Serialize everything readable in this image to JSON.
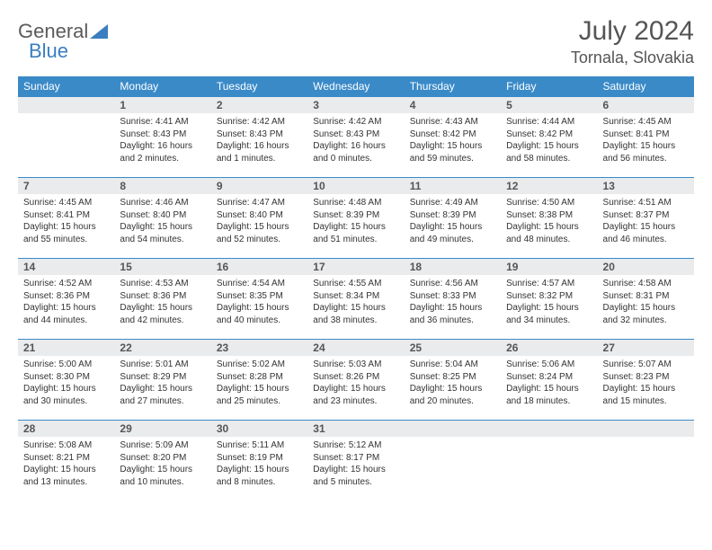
{
  "brand": {
    "word1": "General",
    "word2": "Blue",
    "word1_color": "#5a5a5a",
    "word2_color": "#3a7ebf"
  },
  "title": "July 2024",
  "location": "Tornala, Slovakia",
  "colors": {
    "header_bg": "#3a8ac8",
    "header_fg": "#ffffff",
    "daynum_bg": "#e9ebec",
    "daynum_fg": "#555555",
    "body_fg": "#333333",
    "rule": "#3a8ac8",
    "page_bg": "#ffffff"
  },
  "typography": {
    "month_title_fontsize": 30,
    "location_fontsize": 18,
    "weekday_fontsize": 12,
    "daynum_fontsize": 12,
    "cell_fontsize": 10
  },
  "weekdays": [
    "Sunday",
    "Monday",
    "Tuesday",
    "Wednesday",
    "Thursday",
    "Friday",
    "Saturday"
  ],
  "line_labels": {
    "sunrise": "Sunrise: ",
    "sunset": "Sunset: ",
    "daylight": "Daylight: "
  },
  "weeks": [
    [
      null,
      {
        "n": "1",
        "sr": "4:41 AM",
        "ss": "8:43 PM",
        "dl": "16 hours and 2 minutes."
      },
      {
        "n": "2",
        "sr": "4:42 AM",
        "ss": "8:43 PM",
        "dl": "16 hours and 1 minutes."
      },
      {
        "n": "3",
        "sr": "4:42 AM",
        "ss": "8:43 PM",
        "dl": "16 hours and 0 minutes."
      },
      {
        "n": "4",
        "sr": "4:43 AM",
        "ss": "8:42 PM",
        "dl": "15 hours and 59 minutes."
      },
      {
        "n": "5",
        "sr": "4:44 AM",
        "ss": "8:42 PM",
        "dl": "15 hours and 58 minutes."
      },
      {
        "n": "6",
        "sr": "4:45 AM",
        "ss": "8:41 PM",
        "dl": "15 hours and 56 minutes."
      }
    ],
    [
      {
        "n": "7",
        "sr": "4:45 AM",
        "ss": "8:41 PM",
        "dl": "15 hours and 55 minutes."
      },
      {
        "n": "8",
        "sr": "4:46 AM",
        "ss": "8:40 PM",
        "dl": "15 hours and 54 minutes."
      },
      {
        "n": "9",
        "sr": "4:47 AM",
        "ss": "8:40 PM",
        "dl": "15 hours and 52 minutes."
      },
      {
        "n": "10",
        "sr": "4:48 AM",
        "ss": "8:39 PM",
        "dl": "15 hours and 51 minutes."
      },
      {
        "n": "11",
        "sr": "4:49 AM",
        "ss": "8:39 PM",
        "dl": "15 hours and 49 minutes."
      },
      {
        "n": "12",
        "sr": "4:50 AM",
        "ss": "8:38 PM",
        "dl": "15 hours and 48 minutes."
      },
      {
        "n": "13",
        "sr": "4:51 AM",
        "ss": "8:37 PM",
        "dl": "15 hours and 46 minutes."
      }
    ],
    [
      {
        "n": "14",
        "sr": "4:52 AM",
        "ss": "8:36 PM",
        "dl": "15 hours and 44 minutes."
      },
      {
        "n": "15",
        "sr": "4:53 AM",
        "ss": "8:36 PM",
        "dl": "15 hours and 42 minutes."
      },
      {
        "n": "16",
        "sr": "4:54 AM",
        "ss": "8:35 PM",
        "dl": "15 hours and 40 minutes."
      },
      {
        "n": "17",
        "sr": "4:55 AM",
        "ss": "8:34 PM",
        "dl": "15 hours and 38 minutes."
      },
      {
        "n": "18",
        "sr": "4:56 AM",
        "ss": "8:33 PM",
        "dl": "15 hours and 36 minutes."
      },
      {
        "n": "19",
        "sr": "4:57 AM",
        "ss": "8:32 PM",
        "dl": "15 hours and 34 minutes."
      },
      {
        "n": "20",
        "sr": "4:58 AM",
        "ss": "8:31 PM",
        "dl": "15 hours and 32 minutes."
      }
    ],
    [
      {
        "n": "21",
        "sr": "5:00 AM",
        "ss": "8:30 PM",
        "dl": "15 hours and 30 minutes."
      },
      {
        "n": "22",
        "sr": "5:01 AM",
        "ss": "8:29 PM",
        "dl": "15 hours and 27 minutes."
      },
      {
        "n": "23",
        "sr": "5:02 AM",
        "ss": "8:28 PM",
        "dl": "15 hours and 25 minutes."
      },
      {
        "n": "24",
        "sr": "5:03 AM",
        "ss": "8:26 PM",
        "dl": "15 hours and 23 minutes."
      },
      {
        "n": "25",
        "sr": "5:04 AM",
        "ss": "8:25 PM",
        "dl": "15 hours and 20 minutes."
      },
      {
        "n": "26",
        "sr": "5:06 AM",
        "ss": "8:24 PM",
        "dl": "15 hours and 18 minutes."
      },
      {
        "n": "27",
        "sr": "5:07 AM",
        "ss": "8:23 PM",
        "dl": "15 hours and 15 minutes."
      }
    ],
    [
      {
        "n": "28",
        "sr": "5:08 AM",
        "ss": "8:21 PM",
        "dl": "15 hours and 13 minutes."
      },
      {
        "n": "29",
        "sr": "5:09 AM",
        "ss": "8:20 PM",
        "dl": "15 hours and 10 minutes."
      },
      {
        "n": "30",
        "sr": "5:11 AM",
        "ss": "8:19 PM",
        "dl": "15 hours and 8 minutes."
      },
      {
        "n": "31",
        "sr": "5:12 AM",
        "ss": "8:17 PM",
        "dl": "15 hours and 5 minutes."
      },
      null,
      null,
      null
    ]
  ]
}
